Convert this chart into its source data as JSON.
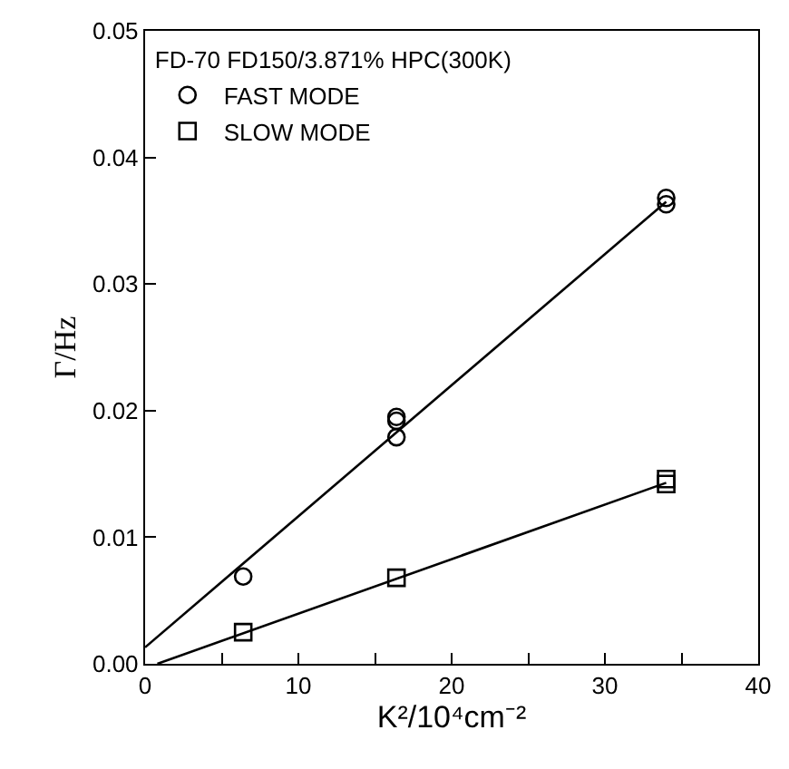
{
  "chart_data": {
    "type": "scatter",
    "xlabel": "K²/10⁴cm⁻²",
    "ylabel": "Γ/Hz",
    "legend_title": "FD-70 FD150/3.871% HPC(300K)",
    "series": [
      {
        "name": "FAST MODE",
        "color": "#000000",
        "marker": "circle",
        "x": [
          6.4,
          16.4,
          16.4,
          16.4,
          34,
          34
        ],
        "values": [
          0.0069,
          0.0195,
          0.0192,
          0.0179,
          0.0368,
          0.0363
        ]
      },
      {
        "name": "SLOW MODE",
        "color": "#000000",
        "marker": "square",
        "x": [
          6.4,
          16.4,
          34,
          34
        ],
        "values": [
          0.0025,
          0.0068,
          0.0146,
          0.0142
        ]
      },
      {
        "type": "line",
        "color": "#000000",
        "marker": "none",
        "x": [
          0,
          34
        ],
        "values": [
          0.0013,
          0.0365
        ]
      },
      {
        "type": "line",
        "color": "#000000",
        "marker": "none",
        "x": [
          0.8,
          34
        ],
        "values": [
          0,
          0.0143
        ]
      }
    ],
    "xlim": [
      0,
      40
    ],
    "ylim": [
      0,
      0.05
    ],
    "xticks": [
      0,
      {
        "value": 5,
        "label": null
      },
      10,
      {
        "value": 15,
        "label": null
      },
      20,
      {
        "value": 25,
        "label": null
      },
      30,
      {
        "value": 35,
        "label": null
      },
      40
    ],
    "yticks": [
      {
        "value": 0,
        "label": "0.00"
      },
      {
        "value": 0.01,
        "label": "0.01"
      },
      {
        "value": 0.02,
        "label": "0.02"
      },
      {
        "value": 0.03,
        "label": "0.03"
      },
      {
        "value": 0.04,
        "label": "0.04"
      },
      {
        "value": 0.05,
        "label": "0.05"
      }
    ],
    "legend": "top left"
  }
}
